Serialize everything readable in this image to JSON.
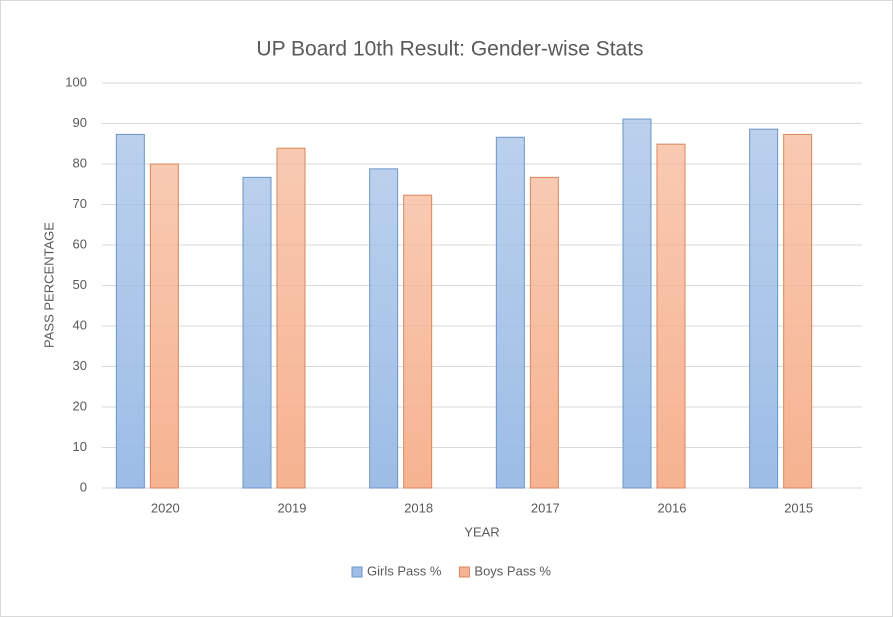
{
  "chart_data": {
    "type": "bar",
    "title": "UP Board 10th Result: Gender-wise Stats",
    "x_label": "YEAR",
    "y_label": "PASS PERCENTAGE",
    "categories": [
      "2020",
      "2019",
      "2018",
      "2017",
      "2016",
      "2015"
    ],
    "series": [
      {
        "name": "Girls Pass %",
        "color": "#9dbde6",
        "values": [
          87.3,
          76.7,
          78.8,
          86.6,
          91.1,
          88.6
        ]
      },
      {
        "name": "Boys Pass %",
        "color": "#f6b391",
        "values": [
          80.0,
          83.9,
          72.3,
          76.7,
          84.9,
          87.3
        ]
      }
    ],
    "ylim": [
      0,
      100
    ],
    "yticks": [
      0,
      10,
      20,
      30,
      40,
      50,
      60,
      70,
      80,
      90,
      100
    ],
    "grid": true,
    "legend": "bottom"
  }
}
